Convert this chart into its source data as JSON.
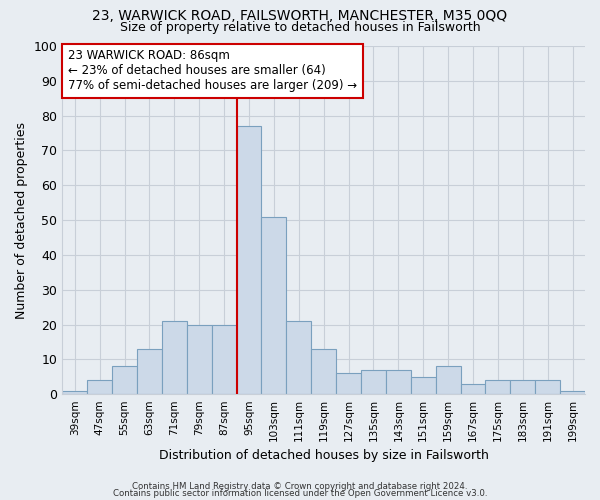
{
  "title": "23, WARWICK ROAD, FAILSWORTH, MANCHESTER, M35 0QQ",
  "subtitle": "Size of property relative to detached houses in Failsworth",
  "xlabel": "Distribution of detached houses by size in Failsworth",
  "ylabel": "Number of detached properties",
  "categories": [
    "39sqm",
    "47sqm",
    "55sqm",
    "63sqm",
    "71sqm",
    "79sqm",
    "87sqm",
    "95sqm",
    "103sqm",
    "111sqm",
    "119sqm",
    "127sqm",
    "135sqm",
    "143sqm",
    "151sqm",
    "159sqm",
    "167sqm",
    "175sqm",
    "183sqm",
    "191sqm",
    "199sqm"
  ],
  "values": [
    1,
    4,
    8,
    13,
    21,
    20,
    20,
    77,
    51,
    21,
    13,
    6,
    7,
    7,
    5,
    8,
    3,
    4,
    4,
    4,
    1
  ],
  "bar_color": "#ccd9e8",
  "bar_edge_color": "#7aa0be",
  "red_line_index": 7,
  "annotation_text": "23 WARWICK ROAD: 86sqm\n← 23% of detached houses are smaller (64)\n77% of semi-detached houses are larger (209) →",
  "annotation_box_color": "#ffffff",
  "annotation_box_edge": "#cc0000",
  "footer_line1": "Contains HM Land Registry data © Crown copyright and database right 2024.",
  "footer_line2": "Contains public sector information licensed under the Open Government Licence v3.0.",
  "ylim": [
    0,
    100
  ],
  "yticks": [
    0,
    10,
    20,
    30,
    40,
    50,
    60,
    70,
    80,
    90,
    100
  ],
  "background_color": "#ffffff",
  "grid_color": "#c8cfd8",
  "fig_bg": "#e8edf2"
}
